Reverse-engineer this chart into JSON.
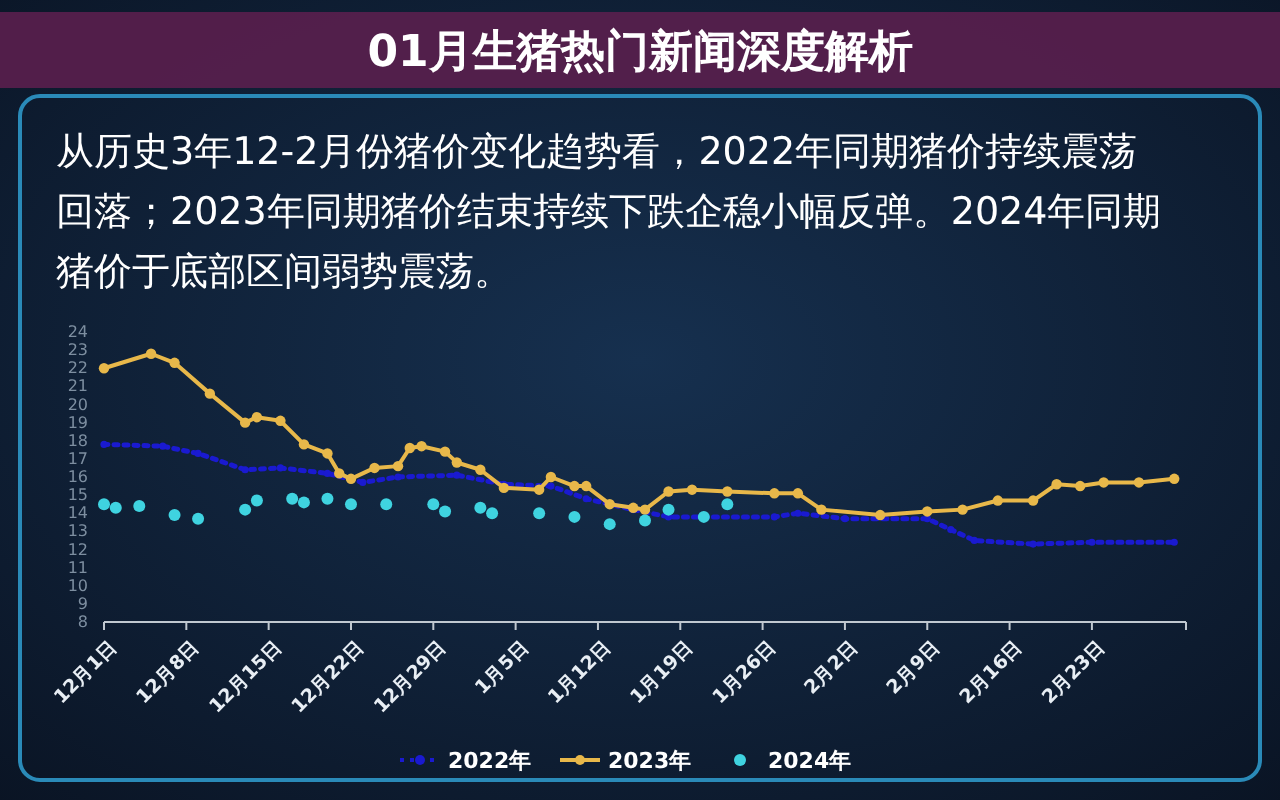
{
  "chart_data": {
    "type": "line",
    "title": "01月生猪热门新闻深度解析",
    "subtitle": "从历史3年12-2月份猪价变化趋势看，2022年同期猪价持续震荡回落；2023年同期猪价结束持续下跌企稳小幅反弹。2024年同期猪价于底部区间弱势震荡。",
    "xlim": [
      "2023-12-01",
      "2024-03-02"
    ],
    "xticks": [
      {
        "value": "2023-12-01",
        "label": "12月1日"
      },
      {
        "value": "2023-12-08",
        "label": "12月8日"
      },
      {
        "value": "2023-12-15",
        "label": "12月15日"
      },
      {
        "value": "2023-12-22",
        "label": "12月22日"
      },
      {
        "value": "2023-12-29",
        "label": "12月29日"
      },
      {
        "value": "2024-01-05",
        "label": "1月5日"
      },
      {
        "value": "2024-01-12",
        "label": "1月12日"
      },
      {
        "value": "2024-01-19",
        "label": "1月19日"
      },
      {
        "value": "2024-01-26",
        "label": "1月26日"
      },
      {
        "value": "2024-02-02",
        "label": "2月2日"
      },
      {
        "value": "2024-02-09",
        "label": "2月9日"
      },
      {
        "value": "2024-02-16",
        "label": "2月16日"
      },
      {
        "value": "2024-02-23",
        "label": "2月23日"
      }
    ],
    "ylim": [
      8,
      24
    ],
    "yticks": [
      8,
      9,
      10,
      11,
      12,
      13,
      14,
      15,
      16,
      17,
      18,
      19,
      20,
      21,
      22,
      23,
      24
    ],
    "grid": false,
    "legend": "bottom",
    "series": [
      {
        "name": "2022年",
        "color": "#1a1ad0",
        "marker": "circle",
        "line_style": "dotted",
        "x": [
          "2023-12-01",
          "2023-12-06",
          "2023-12-09",
          "2023-12-13",
          "2023-12-16",
          "2023-12-20",
          "2023-12-23",
          "2023-12-26",
          "2023-12-31",
          "2024-01-04",
          "2024-01-08",
          "2024-01-11",
          "2024-01-15",
          "2024-01-18",
          "2024-01-27",
          "2024-01-29",
          "2024-02-02",
          "2024-02-09",
          "2024-02-11",
          "2024-02-13",
          "2024-02-18",
          "2024-02-23",
          "2024-03-01"
        ],
        "values": [
          17.8,
          17.7,
          17.3,
          16.4,
          16.5,
          16.2,
          15.7,
          16,
          16.1,
          15.6,
          15.5,
          14.8,
          14.2,
          13.8,
          13.8,
          14,
          13.7,
          13.7,
          13.1,
          12.5,
          12.3,
          12.4,
          12.4
        ]
      },
      {
        "name": "2023年",
        "color": "#e8b84a",
        "marker": "circle",
        "line_style": "solid",
        "x": [
          "2023-12-01",
          "2023-12-05",
          "2023-12-07",
          "2023-12-10",
          "2023-12-13",
          "2023-12-14",
          "2023-12-16",
          "2023-12-18",
          "2023-12-20",
          "2023-12-21",
          "2023-12-22",
          "2023-12-24",
          "2023-12-26",
          "2023-12-27",
          "2023-12-28",
          "2023-12-30",
          "2023-12-31",
          "2024-01-02",
          "2024-01-04",
          "2024-01-07",
          "2024-01-08",
          "2024-01-10",
          "2024-01-11",
          "2024-01-13",
          "2024-01-15",
          "2024-01-16",
          "2024-01-18",
          "2024-01-20",
          "2024-01-23",
          "2024-01-27",
          "2024-01-29",
          "2024-01-31",
          "2024-02-05",
          "2024-02-09",
          "2024-02-12",
          "2024-02-15",
          "2024-02-18",
          "2024-02-20",
          "2024-02-22",
          "2024-02-24",
          "2024-02-27",
          "2024-03-01"
        ],
        "values": [
          22,
          22.8,
          22.3,
          20.6,
          19,
          19.3,
          19.1,
          17.8,
          17.3,
          16.2,
          15.9,
          16.5,
          16.6,
          17.6,
          17.7,
          17.4,
          16.8,
          16.4,
          15.4,
          15.3,
          16,
          15.5,
          15.5,
          14.5,
          14.3,
          14.2,
          15.2,
          15.3,
          15.2,
          15.1,
          15.1,
          14.2,
          13.9,
          14.1,
          14.2,
          14.7,
          14.7,
          15.6,
          15.5,
          15.7,
          15.7,
          15.9
        ]
      },
      {
        "name": "2024年",
        "type": "scatter",
        "color": "#3fd3e0",
        "x": [
          "2023-12-01",
          "2023-12-02",
          "2023-12-04",
          "2023-12-07",
          "2023-12-09",
          "2023-12-13",
          "2023-12-14",
          "2023-12-17",
          "2023-12-18",
          "2023-12-20",
          "2023-12-22",
          "2023-12-25",
          "2023-12-29",
          "2023-12-30",
          "2024-01-02",
          "2024-01-03",
          "2024-01-07",
          "2024-01-10",
          "2024-01-13",
          "2024-01-16",
          "2024-01-18",
          "2024-01-21",
          "2024-01-23"
        ],
        "values": [
          14.5,
          14.3,
          14.4,
          13.9,
          13.7,
          14.2,
          14.7,
          14.8,
          14.6,
          14.8,
          14.5,
          14.5,
          14.5,
          14.1,
          14.3,
          14,
          14,
          13.8,
          13.4,
          13.6,
          14.2,
          13.8,
          14.5
        ]
      }
    ]
  }
}
